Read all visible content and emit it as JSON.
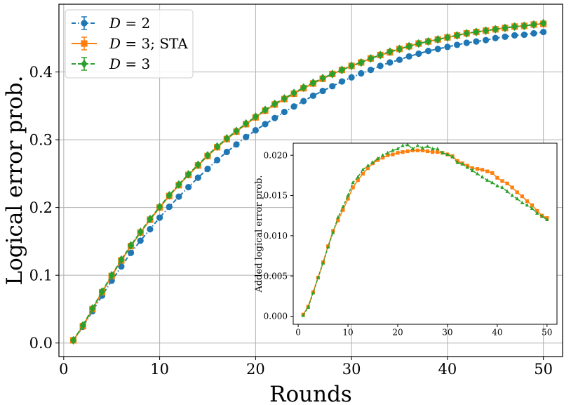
{
  "chart_data": [
    {
      "type": "line",
      "title": "",
      "xlabel": "Rounds",
      "ylabel": "Logical error prob.",
      "xlim": [
        -0.5,
        52
      ],
      "ylim": [
        -0.02,
        0.5
      ],
      "grid": true,
      "xticks": [
        0,
        10,
        20,
        30,
        40,
        50
      ],
      "xtick_labels": [
        "0",
        "10",
        "20",
        "30",
        "40",
        "50"
      ],
      "yticks": [
        0.0,
        0.1,
        0.2,
        0.3,
        0.4
      ],
      "ytick_labels": [
        "0.0",
        "0.1",
        "0.2",
        "0.3",
        "0.4"
      ],
      "legend": {
        "position": "upper-left",
        "entries": [
          {
            "name_prefix": "D",
            "name_suffix": " = 2",
            "extra": "",
            "color": "#1f77b4",
            "marker": "circle",
            "linestyle": "dashdot"
          },
          {
            "name_prefix": "D",
            "name_suffix": " = 3; ",
            "extra": "STA",
            "color": "#ff7f0e",
            "marker": "square",
            "linestyle": "solid"
          },
          {
            "name_prefix": "D",
            "name_suffix": " = 3",
            "extra": "",
            "color": "#2ca02c",
            "marker": "diamond",
            "linestyle": "dashed"
          }
        ]
      },
      "x": [
        1,
        2,
        3,
        4,
        5,
        6,
        7,
        8,
        9,
        10,
        11,
        12,
        13,
        14,
        15,
        16,
        17,
        18,
        19,
        20,
        21,
        22,
        23,
        24,
        25,
        26,
        27,
        28,
        29,
        30,
        31,
        32,
        33,
        34,
        35,
        36,
        37,
        38,
        39,
        40,
        41,
        42,
        43,
        44,
        45,
        46,
        47,
        48,
        49,
        50
      ],
      "series": [
        {
          "name": "D = 2",
          "color": "#1f77b4",
          "marker": "circle",
          "linestyle": "dashdot",
          "values": [
            0.004,
            0.024,
            0.047,
            0.07,
            0.092,
            0.113,
            0.133,
            0.151,
            0.168,
            0.185,
            0.201,
            0.216,
            0.23,
            0.244,
            0.257,
            0.27,
            0.282,
            0.293,
            0.304,
            0.314,
            0.323,
            0.332,
            0.341,
            0.349,
            0.357,
            0.365,
            0.372,
            0.379,
            0.386,
            0.392,
            0.398,
            0.403,
            0.409,
            0.414,
            0.418,
            0.423,
            0.427,
            0.431,
            0.434,
            0.437,
            0.44,
            0.443,
            0.445,
            0.447,
            0.45,
            0.452,
            0.454,
            0.455,
            0.457,
            0.459
          ]
        },
        {
          "name": "D = 3; STA",
          "color": "#ff7f0e",
          "marker": "square",
          "linestyle": "solid",
          "values": [
            0.004,
            0.025,
            0.05,
            0.075,
            0.099,
            0.122,
            0.143,
            0.163,
            0.182,
            0.2,
            0.217,
            0.233,
            0.248,
            0.262,
            0.276,
            0.289,
            0.301,
            0.312,
            0.323,
            0.333,
            0.343,
            0.352,
            0.36,
            0.368,
            0.376,
            0.383,
            0.39,
            0.397,
            0.403,
            0.409,
            0.414,
            0.42,
            0.425,
            0.429,
            0.434,
            0.438,
            0.442,
            0.445,
            0.448,
            0.451,
            0.454,
            0.457,
            0.459,
            0.461,
            0.463,
            0.465,
            0.467,
            0.468,
            0.47,
            0.471
          ]
        },
        {
          "name": "D = 3",
          "color": "#2ca02c",
          "marker": "diamond",
          "linestyle": "dashed",
          "values": [
            0.004,
            0.026,
            0.051,
            0.076,
            0.1,
            0.123,
            0.144,
            0.164,
            0.183,
            0.201,
            0.218,
            0.234,
            0.249,
            0.263,
            0.277,
            0.29,
            0.302,
            0.313,
            0.324,
            0.334,
            0.344,
            0.353,
            0.361,
            0.369,
            0.377,
            0.384,
            0.391,
            0.397,
            0.403,
            0.409,
            0.414,
            0.42,
            0.425,
            0.43,
            0.434,
            0.438,
            0.442,
            0.445,
            0.448,
            0.451,
            0.454,
            0.457,
            0.459,
            0.461,
            0.463,
            0.465,
            0.467,
            0.468,
            0.47,
            0.472
          ]
        }
      ]
    },
    {
      "type": "line",
      "title": "",
      "xlabel": "",
      "ylabel": "Added logical error prob.",
      "xlim": [
        -1,
        52
      ],
      "ylim": [
        -0.001,
        0.0215
      ],
      "grid": false,
      "xticks": [
        0,
        10,
        20,
        30,
        40,
        50
      ],
      "xtick_labels": [
        "0",
        "10",
        "20",
        "30",
        "40",
        "50"
      ],
      "yticks": [
        0.0,
        0.005,
        0.01,
        0.015,
        0.02
      ],
      "ytick_labels": [
        "0.000",
        "0.005",
        "0.010",
        "0.015",
        "0.020"
      ],
      "x": [
        1,
        2,
        3,
        4,
        5,
        6,
        7,
        8,
        9,
        10,
        11,
        12,
        13,
        14,
        15,
        16,
        17,
        18,
        19,
        20,
        21,
        22,
        23,
        24,
        25,
        26,
        27,
        28,
        29,
        30,
        31,
        32,
        33,
        34,
        35,
        36,
        37,
        38,
        39,
        40,
        41,
        42,
        43,
        44,
        45,
        46,
        47,
        48,
        49,
        50
      ],
      "series": [
        {
          "name": "D = 3; STA",
          "color": "#ff7f0e",
          "marker": "square",
          "linestyle": "solid",
          "values": [
            0.0002,
            0.0012,
            0.003,
            0.0048,
            0.0067,
            0.0087,
            0.0106,
            0.0119,
            0.0132,
            0.0146,
            0.016,
            0.0169,
            0.0177,
            0.0184,
            0.019,
            0.0194,
            0.0197,
            0.02,
            0.0201,
            0.0203,
            0.0204,
            0.0205,
            0.0206,
            0.0206,
            0.0206,
            0.0205,
            0.0204,
            0.0204,
            0.0203,
            0.0201,
            0.0199,
            0.0193,
            0.019,
            0.0187,
            0.0184,
            0.0183,
            0.0182,
            0.018,
            0.0178,
            0.0172,
            0.0168,
            0.0165,
            0.016,
            0.0154,
            0.0149,
            0.0143,
            0.0138,
            0.0131,
            0.0125,
            0.0122
          ]
        },
        {
          "name": "D = 3",
          "color": "#2ca02c",
          "marker": "triangle",
          "linestyle": "dashed",
          "values": [
            0.0001,
            0.0011,
            0.0029,
            0.0048,
            0.0066,
            0.0086,
            0.0104,
            0.0123,
            0.0136,
            0.015,
            0.0166,
            0.0173,
            0.0182,
            0.0187,
            0.0191,
            0.0196,
            0.02,
            0.0203,
            0.0206,
            0.0208,
            0.0212,
            0.0213,
            0.0208,
            0.0212,
            0.0209,
            0.0211,
            0.0208,
            0.0208,
            0.0203,
            0.0201,
            0.0198,
            0.0191,
            0.0189,
            0.0185,
            0.0181,
            0.0177,
            0.0173,
            0.0169,
            0.0166,
            0.0162,
            0.016,
            0.0155,
            0.015,
            0.0146,
            0.0141,
            0.0138,
            0.0134,
            0.0128,
            0.0124,
            0.012
          ]
        }
      ]
    }
  ]
}
